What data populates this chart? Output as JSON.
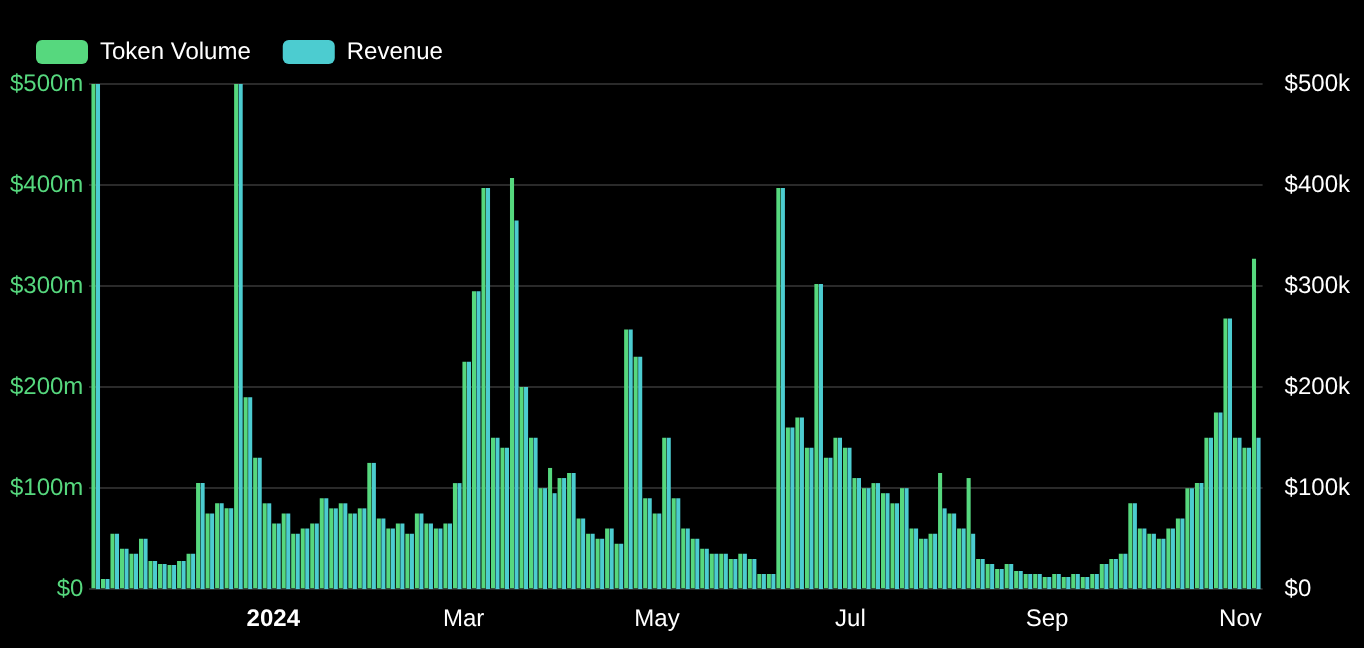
{
  "chart_data": {
    "type": "bar",
    "x": [
      "2023-11-06",
      "2023-11-09",
      "2023-11-12",
      "2023-11-15",
      "2023-11-18",
      "2023-11-21",
      "2023-11-24",
      "2023-11-27",
      "2023-11-30",
      "2023-12-03",
      "2023-12-06",
      "2023-12-09",
      "2023-12-12",
      "2023-12-15",
      "2023-12-18",
      "2023-12-21",
      "2023-12-24",
      "2023-12-27",
      "2023-12-30",
      "2024-01-02",
      "2024-01-05",
      "2024-01-08",
      "2024-01-11",
      "2024-01-14",
      "2024-01-17",
      "2024-01-20",
      "2024-01-23",
      "2024-01-26",
      "2024-01-29",
      "2024-02-01",
      "2024-02-04",
      "2024-02-07",
      "2024-02-10",
      "2024-02-13",
      "2024-02-16",
      "2024-02-19",
      "2024-02-22",
      "2024-02-25",
      "2024-02-28",
      "2024-03-02",
      "2024-03-05",
      "2024-03-08",
      "2024-03-11",
      "2024-03-14",
      "2024-03-17",
      "2024-03-20",
      "2024-03-23",
      "2024-03-26",
      "2024-03-29",
      "2024-04-01",
      "2024-04-04",
      "2024-04-07",
      "2024-04-10",
      "2024-04-13",
      "2024-04-16",
      "2024-04-19",
      "2024-04-22",
      "2024-04-25",
      "2024-04-28",
      "2024-05-01",
      "2024-05-04",
      "2024-05-07",
      "2024-05-10",
      "2024-05-13",
      "2024-05-16",
      "2024-05-19",
      "2024-05-22",
      "2024-05-25",
      "2024-05-28",
      "2024-05-31",
      "2024-06-03",
      "2024-06-06",
      "2024-06-09",
      "2024-06-12",
      "2024-06-15",
      "2024-06-18",
      "2024-06-21",
      "2024-06-24",
      "2024-06-27",
      "2024-06-30",
      "2024-07-03",
      "2024-07-06",
      "2024-07-09",
      "2024-07-12",
      "2024-07-15",
      "2024-07-18",
      "2024-07-21",
      "2024-07-24",
      "2024-07-27",
      "2024-07-30",
      "2024-08-02",
      "2024-08-05",
      "2024-08-08",
      "2024-08-11",
      "2024-08-14",
      "2024-08-17",
      "2024-08-20",
      "2024-08-23",
      "2024-08-26",
      "2024-08-29",
      "2024-09-01",
      "2024-09-04",
      "2024-09-07",
      "2024-09-10",
      "2024-09-13",
      "2024-09-16",
      "2024-09-19",
      "2024-09-22",
      "2024-09-25",
      "2024-09-28",
      "2024-10-01",
      "2024-10-04",
      "2024-10-07",
      "2024-10-10",
      "2024-10-13",
      "2024-10-16",
      "2024-10-19",
      "2024-10-22",
      "2024-10-25",
      "2024-10-28",
      "2024-10-31",
      "2024-11-03",
      "2024-11-06"
    ],
    "series": [
      {
        "name": "Token Volume",
        "color": "#56d87e",
        "values": [
          500,
          10,
          55,
          40,
          35,
          50,
          28,
          25,
          24,
          28,
          35,
          105,
          75,
          85,
          80,
          500,
          190,
          130,
          85,
          65,
          75,
          55,
          60,
          65,
          90,
          80,
          85,
          75,
          80,
          125,
          70,
          60,
          65,
          55,
          75,
          65,
          60,
          65,
          105,
          225,
          295,
          397,
          150,
          140,
          407,
          200,
          150,
          100,
          120,
          110,
          115,
          70,
          55,
          50,
          60,
          45,
          257,
          230,
          90,
          75,
          150,
          90,
          60,
          50,
          40,
          35,
          35,
          30,
          35,
          30,
          15,
          15,
          397,
          160,
          170,
          140,
          302,
          130,
          150,
          140,
          110,
          100,
          105,
          95,
          85,
          100,
          60,
          50,
          55,
          115,
          75,
          60,
          110,
          30,
          25,
          20,
          25,
          18,
          15,
          15,
          12,
          15,
          12,
          15,
          12,
          15,
          25,
          30,
          35,
          85,
          60,
          55,
          50,
          60,
          70,
          100,
          105,
          150,
          175,
          268,
          150,
          140,
          327
        ]
      },
      {
        "name": "Revenue",
        "color": "#4cccd0",
        "axis": "y2",
        "values": [
          500,
          10,
          55,
          40,
          35,
          50,
          28,
          25,
          24,
          28,
          35,
          105,
          75,
          85,
          80,
          500,
          190,
          130,
          85,
          65,
          75,
          55,
          60,
          65,
          90,
          80,
          85,
          75,
          80,
          125,
          70,
          60,
          65,
          55,
          75,
          65,
          60,
          65,
          105,
          225,
          295,
          397,
          150,
          140,
          365,
          200,
          150,
          100,
          95,
          110,
          115,
          70,
          55,
          50,
          60,
          45,
          257,
          230,
          90,
          75,
          150,
          90,
          60,
          50,
          40,
          35,
          35,
          30,
          35,
          30,
          15,
          15,
          397,
          160,
          170,
          140,
          302,
          130,
          150,
          140,
          110,
          100,
          105,
          95,
          85,
          100,
          60,
          50,
          55,
          80,
          75,
          60,
          55,
          30,
          25,
          20,
          25,
          18,
          15,
          15,
          12,
          15,
          12,
          15,
          12,
          15,
          25,
          30,
          35,
          85,
          60,
          55,
          50,
          60,
          70,
          100,
          105,
          150,
          175,
          268,
          150,
          140,
          150
        ]
      }
    ],
    "xlim": [
      "2023-11-04",
      "2024-11-08"
    ],
    "xticks": [
      {
        "value": "2024-01-01",
        "label": "2024"
      },
      {
        "value": "2024-03-01",
        "label": "Mar"
      },
      {
        "value": "2024-05-01",
        "label": "May"
      },
      {
        "value": "2024-07-01",
        "label": "Jul"
      },
      {
        "value": "2024-09-01",
        "label": "Sep"
      },
      {
        "value": "2024-11-01",
        "label": "Nov"
      }
    ],
    "ylim": [
      0,
      500
    ],
    "yticks": [
      {
        "value": 0,
        "label": "$0"
      },
      {
        "value": 100,
        "label": "$100m"
      },
      {
        "value": 200,
        "label": "$200m"
      },
      {
        "value": 300,
        "label": "$300m"
      },
      {
        "value": 400,
        "label": "$400m"
      },
      {
        "value": 500,
        "label": "$500m"
      }
    ],
    "y2lim": [
      0,
      500
    ],
    "y2ticks": [
      {
        "value": 0,
        "label": "$0"
      },
      {
        "value": 100,
        "label": "$100k"
      },
      {
        "value": 200,
        "label": "$200k"
      },
      {
        "value": 300,
        "label": "$300k"
      },
      {
        "value": 400,
        "label": "$400k"
      },
      {
        "value": 500,
        "label": "$500k"
      }
    ],
    "grid": "y",
    "legend": "top left"
  }
}
